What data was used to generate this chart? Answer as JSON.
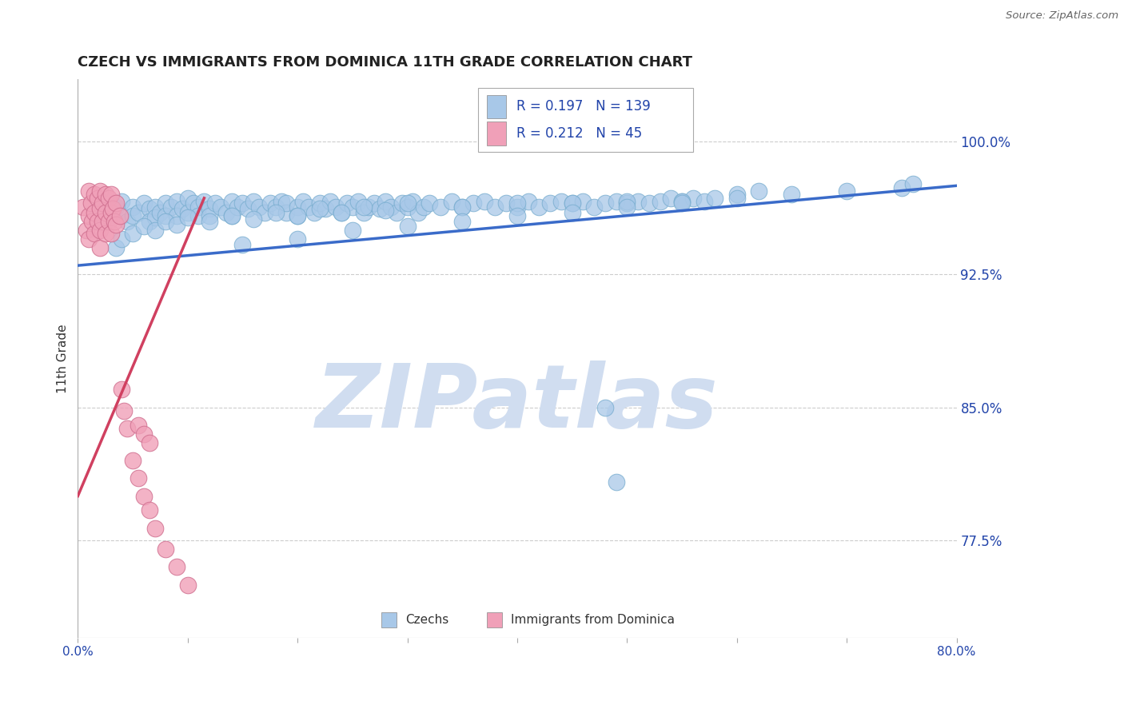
{
  "title": "CZECH VS IMMIGRANTS FROM DOMINICA 11TH GRADE CORRELATION CHART",
  "source_text": "Source: ZipAtlas.com",
  "ylabel": "11th Grade",
  "xlim": [
    0.0,
    0.8
  ],
  "ylim": [
    0.72,
    1.035
  ],
  "xticks": [
    0.0,
    0.1,
    0.2,
    0.3,
    0.4,
    0.5,
    0.6,
    0.7,
    0.8
  ],
  "xticklabels": [
    "0.0%",
    "",
    "",
    "",
    "",
    "",
    "",
    "",
    "80.0%"
  ],
  "yticks_right": [
    0.775,
    0.85,
    0.925,
    1.0
  ],
  "yticklabels_right": [
    "77.5%",
    "85.0%",
    "92.5%",
    "100.0%"
  ],
  "blue_color": "#a8c8e8",
  "blue_edge_color": "#7aaed0",
  "pink_color": "#f0a0b8",
  "pink_edge_color": "#d07090",
  "trend_blue": "#3a6bc9",
  "trend_pink": "#d04060",
  "r_blue": 0.197,
  "n_blue": 139,
  "r_pink": 0.212,
  "n_pink": 45,
  "title_fontsize": 13,
  "watermark_text": "ZIPatlas",
  "watermark_color": "#d0ddf0",
  "background_color": "#ffffff",
  "grid_color": "#cccccc",
  "axis_label_color": "#2244aa",
  "tick_label_color": "#2244aa",
  "trend_blue_x0": 0.0,
  "trend_blue_x1": 0.8,
  "trend_blue_y0": 0.93,
  "trend_blue_y1": 0.975,
  "trend_pink_x0": 0.0,
  "trend_pink_x1": 0.115,
  "trend_pink_y0": 0.8,
  "trend_pink_y1": 0.968,
  "blue_scatter_x": [
    0.02,
    0.025,
    0.03,
    0.035,
    0.04,
    0.04,
    0.045,
    0.05,
    0.05,
    0.055,
    0.06,
    0.065,
    0.065,
    0.07,
    0.07,
    0.075,
    0.08,
    0.08,
    0.085,
    0.09,
    0.09,
    0.095,
    0.1,
    0.1,
    0.105,
    0.11,
    0.11,
    0.115,
    0.12,
    0.12,
    0.125,
    0.13,
    0.135,
    0.14,
    0.14,
    0.145,
    0.15,
    0.155,
    0.16,
    0.165,
    0.17,
    0.175,
    0.18,
    0.185,
    0.19,
    0.19,
    0.2,
    0.2,
    0.205,
    0.21,
    0.215,
    0.22,
    0.225,
    0.23,
    0.235,
    0.24,
    0.245,
    0.25,
    0.255,
    0.26,
    0.265,
    0.27,
    0.275,
    0.28,
    0.285,
    0.29,
    0.295,
    0.3,
    0.305,
    0.31,
    0.315,
    0.32,
    0.33,
    0.34,
    0.35,
    0.36,
    0.37,
    0.38,
    0.39,
    0.4,
    0.41,
    0.42,
    0.43,
    0.44,
    0.45,
    0.46,
    0.47,
    0.48,
    0.49,
    0.5,
    0.51,
    0.52,
    0.53,
    0.54,
    0.55,
    0.56,
    0.57,
    0.58,
    0.6,
    0.62,
    0.035,
    0.04,
    0.05,
    0.06,
    0.07,
    0.08,
    0.09,
    0.1,
    0.12,
    0.14,
    0.16,
    0.18,
    0.2,
    0.22,
    0.24,
    0.26,
    0.28,
    0.3,
    0.35,
    0.4,
    0.45,
    0.5,
    0.55,
    0.6,
    0.65,
    0.7,
    0.75,
    0.76,
    0.48,
    0.49,
    0.15,
    0.2,
    0.25,
    0.3,
    0.35,
    0.4,
    0.45,
    0.5,
    0.55
  ],
  "blue_scatter_y": [
    0.962,
    0.955,
    0.96,
    0.963,
    0.958,
    0.966,
    0.955,
    0.963,
    0.958,
    0.96,
    0.965,
    0.962,
    0.955,
    0.963,
    0.957,
    0.96,
    0.965,
    0.958,
    0.963,
    0.966,
    0.958,
    0.962,
    0.968,
    0.96,
    0.965,
    0.963,
    0.958,
    0.966,
    0.962,
    0.958,
    0.965,
    0.963,
    0.96,
    0.966,
    0.958,
    0.963,
    0.965,
    0.962,
    0.966,
    0.963,
    0.96,
    0.965,
    0.963,
    0.966,
    0.96,
    0.965,
    0.963,
    0.958,
    0.966,
    0.963,
    0.96,
    0.965,
    0.962,
    0.966,
    0.963,
    0.96,
    0.965,
    0.963,
    0.966,
    0.96,
    0.963,
    0.965,
    0.962,
    0.966,
    0.963,
    0.96,
    0.965,
    0.963,
    0.966,
    0.96,
    0.963,
    0.965,
    0.963,
    0.966,
    0.963,
    0.965,
    0.966,
    0.963,
    0.965,
    0.963,
    0.966,
    0.963,
    0.965,
    0.966,
    0.965,
    0.966,
    0.963,
    0.965,
    0.966,
    0.965,
    0.966,
    0.965,
    0.966,
    0.968,
    0.966,
    0.968,
    0.966,
    0.968,
    0.97,
    0.972,
    0.94,
    0.945,
    0.948,
    0.952,
    0.95,
    0.955,
    0.953,
    0.957,
    0.955,
    0.958,
    0.956,
    0.96,
    0.958,
    0.962,
    0.96,
    0.963,
    0.961,
    0.965,
    0.963,
    0.965,
    0.965,
    0.966,
    0.966,
    0.968,
    0.97,
    0.972,
    0.974,
    0.976,
    0.85,
    0.808,
    0.942,
    0.945,
    0.95,
    0.952,
    0.955,
    0.958,
    0.96,
    0.963,
    0.965
  ],
  "pink_scatter_x": [
    0.005,
    0.008,
    0.01,
    0.01,
    0.01,
    0.012,
    0.013,
    0.015,
    0.015,
    0.015,
    0.018,
    0.018,
    0.02,
    0.02,
    0.02,
    0.02,
    0.022,
    0.022,
    0.025,
    0.025,
    0.025,
    0.028,
    0.028,
    0.03,
    0.03,
    0.03,
    0.032,
    0.033,
    0.035,
    0.035,
    0.038,
    0.04,
    0.042,
    0.045,
    0.05,
    0.055,
    0.06,
    0.065,
    0.07,
    0.08,
    0.09,
    0.1,
    0.055,
    0.06,
    0.065
  ],
  "pink_scatter_y": [
    0.963,
    0.95,
    0.972,
    0.958,
    0.945,
    0.965,
    0.955,
    0.97,
    0.96,
    0.948,
    0.968,
    0.955,
    0.972,
    0.962,
    0.95,
    0.94,
    0.965,
    0.955,
    0.97,
    0.96,
    0.948,
    0.968,
    0.955,
    0.97,
    0.96,
    0.948,
    0.962,
    0.955,
    0.965,
    0.953,
    0.958,
    0.86,
    0.848,
    0.838,
    0.82,
    0.81,
    0.8,
    0.792,
    0.782,
    0.77,
    0.76,
    0.75,
    0.84,
    0.835,
    0.83
  ]
}
